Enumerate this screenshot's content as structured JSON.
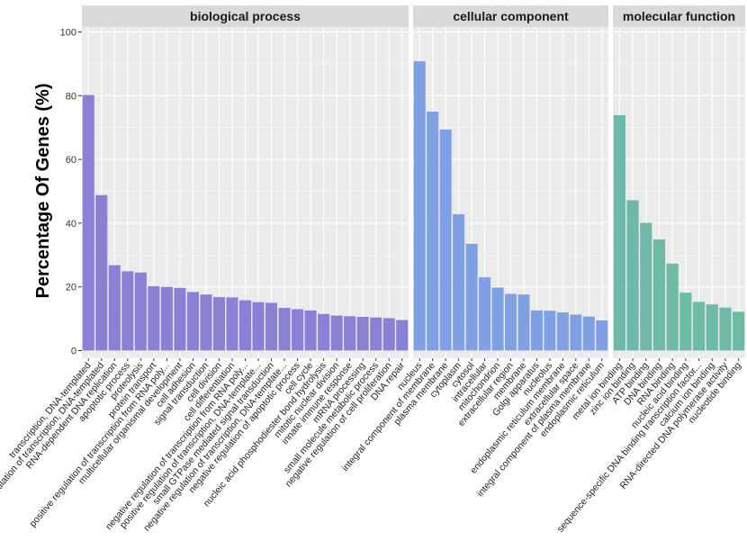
{
  "chart_data": {
    "type": "bar",
    "ylabel": "Percentage Of Genes (%)",
    "ylim": [
      0,
      100
    ],
    "yticks": [
      0,
      20,
      40,
      60,
      80,
      100
    ],
    "grid": true,
    "panels": [
      {
        "title": "biological process",
        "color": "#8b81d4",
        "categories": [
          "transcription, DNA-templated",
          "regulation of transcription, DNA-templated",
          "RNA-dependent DNA replication",
          "apoptotic process",
          "proteolysis",
          "protein transport",
          "positive regulation of transcription from RNA poly...",
          "multicellular organismal development",
          "cell adhesion",
          "signal transduction",
          "cell division",
          "cell differentiation",
          "negative regulation of transcription from RNA poly...",
          "positive regulation of transcription, DNA-template...",
          "small GTPase mediated signal transduction",
          "negative regulation of transcription, DNA-template...",
          "negative regulation of apoptotic process",
          "cell cycle",
          "nucleic acid phosphodiester bond hydrolysis",
          "mitotic nuclear division",
          "innate immune response",
          "mRNA processing",
          "small molecule metabolic process",
          "negative regulation of cell proliferation",
          "DNA repair"
        ],
        "values": [
          80.2,
          48.8,
          26.8,
          24.9,
          24.5,
          20.2,
          20.0,
          19.7,
          18.4,
          17.6,
          16.8,
          16.7,
          15.8,
          15.2,
          15.0,
          13.4,
          13.0,
          12.6,
          11.5,
          11.0,
          10.8,
          10.6,
          10.4,
          10.2,
          9.6
        ]
      },
      {
        "title": "cellular component",
        "color": "#7fa0e2",
        "categories": [
          "nucleus",
          "integral component of membrane",
          "plasma membrane",
          "cytoplasm",
          "cytosol",
          "intracellular",
          "mitochondrion",
          "extracellular region",
          "membrane",
          "Golgi apparatus",
          "nucleolus",
          "endoplasmic reticulum membrane",
          "extracellular space",
          "integral component of plasma membrane",
          "endoplasmic reticulum"
        ],
        "values": [
          90.8,
          75.0,
          69.4,
          42.8,
          33.5,
          23.0,
          19.8,
          17.8,
          17.6,
          12.6,
          12.5,
          12.0,
          11.3,
          10.7,
          9.5
        ]
      },
      {
        "title": "molecular function",
        "color": "#6fb9a9",
        "categories": [
          "metal ion binding",
          "zinc ion binding",
          "ATP binding",
          "DNA binding",
          "RNA binding",
          "nucleic acid binding",
          "sequence-specific DNA binding transcription factor...",
          "calcium ion binding",
          "RNA-directed DNA polymerase activity",
          "nucleotide binding"
        ],
        "values": [
          73.9,
          47.2,
          40.1,
          34.9,
          27.3,
          18.2,
          15.3,
          14.5,
          13.5,
          12.2
        ]
      }
    ]
  }
}
